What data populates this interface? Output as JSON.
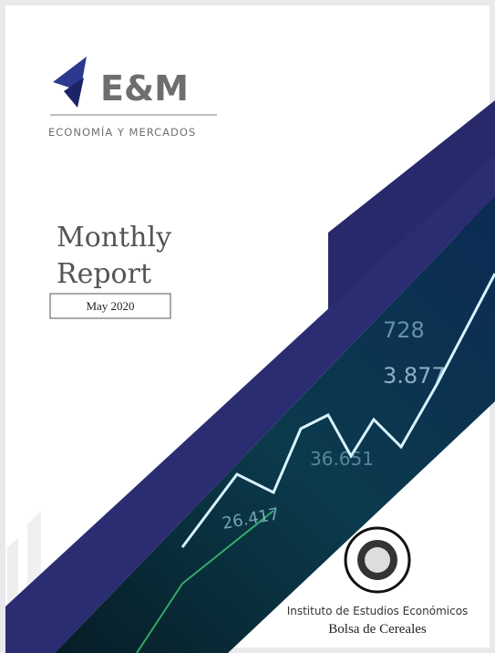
{
  "logo": {
    "mark": "E&M",
    "tagline": "ECONOMÍA Y MERCADOS"
  },
  "title": {
    "line1": "Monthly",
    "line2": "Report"
  },
  "date": "May 2020",
  "background_figures": [
    "728",
    "3.877",
    "36.651",
    "26.417"
  ],
  "publisher": {
    "institute": "Instituto de Estudios Económicos",
    "organization": "Bolsa de Cereales"
  }
}
